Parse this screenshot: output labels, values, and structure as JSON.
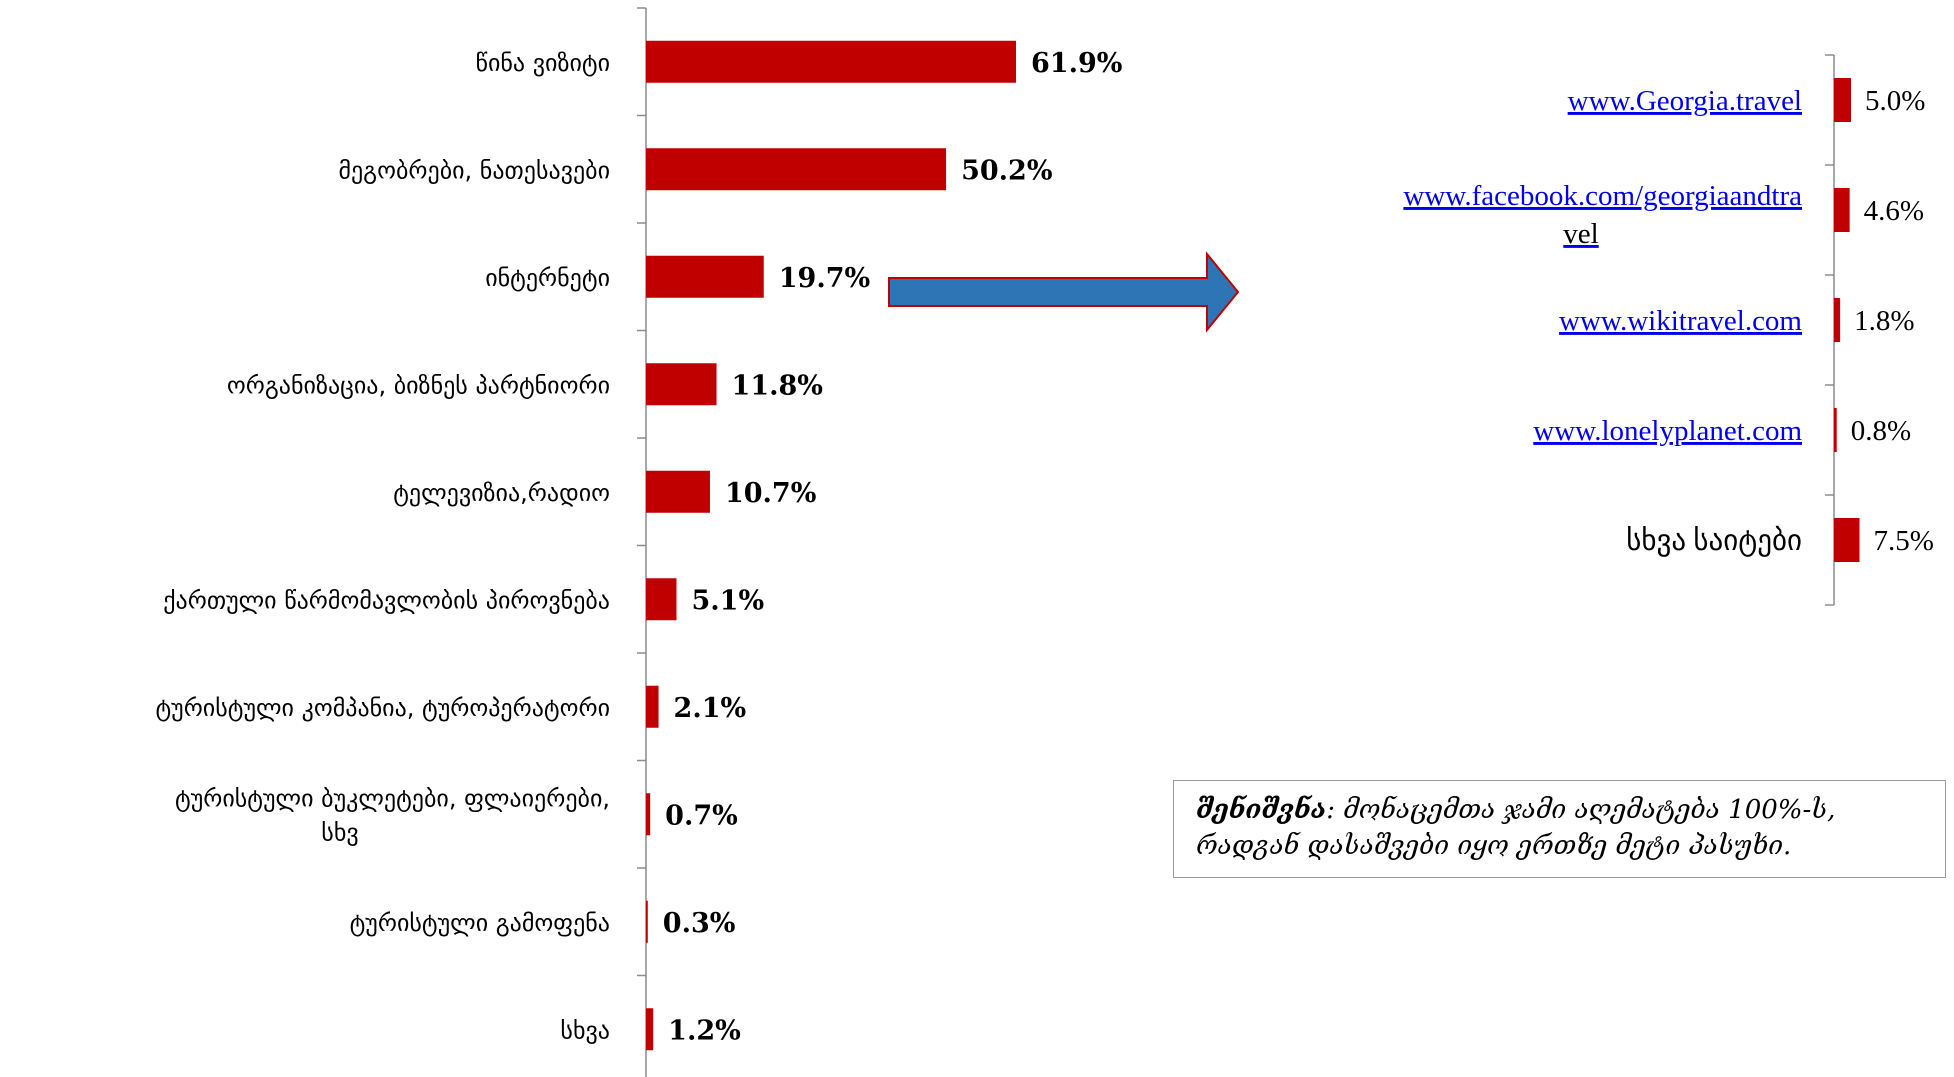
{
  "chart_data": [
    {
      "type": "bar",
      "orientation": "horizontal",
      "categories": [
        "წინა ვიზიტი",
        "მეგობრები, ნათესავები",
        "ინტერნეტი",
        "ორგანიზაცია, ბიზნეს პარტნიორი",
        "ტელევიზია,რადიო",
        "ქართული წარმომავლობის პიროვნება",
        "ტურისტული კომპანია, ტუროპერატორი",
        "ტურისტული ბუკლეტები, ფლაიერები, სხვ",
        "ტურისტული გამოფენა",
        "სხვა"
      ],
      "values": [
        61.9,
        50.2,
        19.7,
        11.8,
        10.7,
        5.1,
        2.1,
        0.7,
        0.3,
        1.2
      ],
      "value_labels": [
        "61.9%",
        "50.2%",
        "19.7%",
        "11.8%",
        "10.7%",
        "5.1%",
        "2.1%",
        "0.7%",
        "0.3%",
        "1.2%"
      ],
      "xlim": [
        0,
        100
      ],
      "bar_color": "#c00000",
      "grid": false
    },
    {
      "type": "bar",
      "orientation": "horizontal",
      "categories": [
        "www.Georgia.travel",
        "www.facebook.com/georgiaandtravel",
        "www.wikitravel.com",
        "www.lonelyplanet.com",
        "სხვა საიტები"
      ],
      "values": [
        5.0,
        4.6,
        1.8,
        0.8,
        7.5
      ],
      "value_labels": [
        "5.0%",
        "4.6%",
        "1.8%",
        "0.8%",
        "7.5%"
      ],
      "links": [
        true,
        true,
        true,
        true,
        false
      ],
      "xlim": [
        0,
        100
      ],
      "bar_color": "#c00000",
      "grid": false
    }
  ],
  "arrow": {
    "fill": "#2e75b6",
    "stroke": "#c00000"
  },
  "note": {
    "bold": "შენიშვნა",
    "text": ": მონაცემთა ჯამი აღემატება 100%-ს, რადგან დასაშვები იყო ერთზე მეტი პასუხი."
  }
}
